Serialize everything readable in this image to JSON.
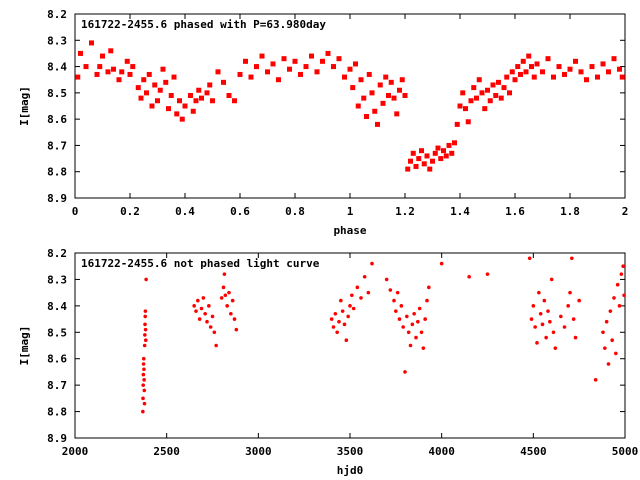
{
  "chart_data": [
    {
      "type": "scatter",
      "title": "161722-2455.6 phased with P=63.980day",
      "xlabel": "phase",
      "ylabel": "I[mag]",
      "xlim": [
        0,
        2
      ],
      "ylim": [
        8.9,
        8.2
      ],
      "y_inverted": true,
      "xticks": [
        "0",
        "0.2",
        "0.4",
        "0.6",
        "0.8",
        "1",
        "1.2",
        "1.4",
        "1.6",
        "1.8",
        "2"
      ],
      "yticks": [
        "8.2",
        "8.3",
        "8.4",
        "8.5",
        "8.6",
        "8.7",
        "8.8",
        "8.9"
      ],
      "marker_color": "#ff0000",
      "series": [
        {
          "points": [
            [
              0.01,
              8.44
            ],
            [
              0.02,
              8.35
            ],
            [
              0.04,
              8.4
            ],
            [
              0.06,
              8.31
            ],
            [
              0.08,
              8.43
            ],
            [
              0.09,
              8.4
            ],
            [
              0.1,
              8.36
            ],
            [
              0.12,
              8.42
            ],
            [
              0.13,
              8.34
            ],
            [
              0.14,
              8.41
            ],
            [
              0.16,
              8.45
            ],
            [
              0.17,
              8.42
            ],
            [
              0.19,
              8.38
            ],
            [
              0.2,
              8.43
            ],
            [
              0.21,
              8.4
            ],
            [
              0.23,
              8.48
            ],
            [
              0.24,
              8.52
            ],
            [
              0.25,
              8.45
            ],
            [
              0.26,
              8.5
            ],
            [
              0.27,
              8.43
            ],
            [
              0.28,
              8.55
            ],
            [
              0.29,
              8.47
            ],
            [
              0.3,
              8.53
            ],
            [
              0.31,
              8.49
            ],
            [
              0.32,
              8.41
            ],
            [
              0.33,
              8.46
            ],
            [
              0.34,
              8.56
            ],
            [
              0.35,
              8.51
            ],
            [
              0.36,
              8.44
            ],
            [
              0.37,
              8.58
            ],
            [
              0.38,
              8.53
            ],
            [
              0.39,
              8.6
            ],
            [
              0.4,
              8.55
            ],
            [
              0.42,
              8.51
            ],
            [
              0.43,
              8.57
            ],
            [
              0.44,
              8.53
            ],
            [
              0.45,
              8.49
            ],
            [
              0.46,
              8.52
            ],
            [
              0.48,
              8.5
            ],
            [
              0.49,
              8.47
            ],
            [
              0.5,
              8.53
            ],
            [
              0.52,
              8.42
            ],
            [
              0.54,
              8.46
            ],
            [
              0.56,
              8.51
            ],
            [
              0.58,
              8.53
            ],
            [
              0.6,
              8.43
            ],
            [
              0.62,
              8.38
            ],
            [
              0.64,
              8.44
            ],
            [
              0.66,
              8.4
            ],
            [
              0.68,
              8.36
            ],
            [
              0.7,
              8.42
            ],
            [
              0.72,
              8.39
            ],
            [
              0.74,
              8.45
            ],
            [
              0.76,
              8.37
            ],
            [
              0.78,
              8.41
            ],
            [
              0.8,
              8.38
            ],
            [
              0.82,
              8.43
            ],
            [
              0.84,
              8.4
            ],
            [
              0.86,
              8.36
            ],
            [
              0.88,
              8.42
            ],
            [
              0.9,
              8.38
            ],
            [
              0.92,
              8.35
            ],
            [
              0.94,
              8.4
            ],
            [
              0.96,
              8.37
            ],
            [
              0.98,
              8.44
            ],
            [
              1.0,
              8.41
            ],
            [
              1.01,
              8.48
            ],
            [
              1.02,
              8.39
            ],
            [
              1.03,
              8.55
            ],
            [
              1.04,
              8.45
            ],
            [
              1.05,
              8.52
            ],
            [
              1.06,
              8.59
            ],
            [
              1.07,
              8.43
            ],
            [
              1.08,
              8.5
            ],
            [
              1.09,
              8.57
            ],
            [
              1.1,
              8.62
            ],
            [
              1.11,
              8.47
            ],
            [
              1.12,
              8.54
            ],
            [
              1.13,
              8.44
            ],
            [
              1.14,
              8.51
            ],
            [
              1.15,
              8.46
            ],
            [
              1.16,
              8.52
            ],
            [
              1.17,
              8.58
            ],
            [
              1.18,
              8.49
            ],
            [
              1.19,
              8.45
            ],
            [
              1.2,
              8.51
            ],
            [
              1.21,
              8.79
            ],
            [
              1.22,
              8.76
            ],
            [
              1.23,
              8.73
            ],
            [
              1.24,
              8.78
            ],
            [
              1.25,
              8.75
            ],
            [
              1.26,
              8.72
            ],
            [
              1.27,
              8.77
            ],
            [
              1.28,
              8.74
            ],
            [
              1.29,
              8.79
            ],
            [
              1.3,
              8.76
            ],
            [
              1.31,
              8.73
            ],
            [
              1.32,
              8.71
            ],
            [
              1.33,
              8.75
            ],
            [
              1.34,
              8.72
            ],
            [
              1.35,
              8.74
            ],
            [
              1.36,
              8.7
            ],
            [
              1.37,
              8.73
            ],
            [
              1.38,
              8.69
            ],
            [
              1.39,
              8.62
            ],
            [
              1.4,
              8.55
            ],
            [
              1.41,
              8.5
            ],
            [
              1.42,
              8.56
            ],
            [
              1.43,
              8.61
            ],
            [
              1.44,
              8.53
            ],
            [
              1.45,
              8.48
            ],
            [
              1.46,
              8.52
            ],
            [
              1.47,
              8.45
            ],
            [
              1.48,
              8.5
            ],
            [
              1.49,
              8.56
            ],
            [
              1.5,
              8.49
            ],
            [
              1.51,
              8.53
            ],
            [
              1.52,
              8.47
            ],
            [
              1.53,
              8.51
            ],
            [
              1.54,
              8.46
            ],
            [
              1.55,
              8.52
            ],
            [
              1.56,
              8.48
            ],
            [
              1.57,
              8.44
            ],
            [
              1.58,
              8.5
            ],
            [
              1.59,
              8.42
            ],
            [
              1.6,
              8.45
            ],
            [
              1.61,
              8.4
            ],
            [
              1.62,
              8.43
            ],
            [
              1.63,
              8.38
            ],
            [
              1.64,
              8.42
            ],
            [
              1.65,
              8.36
            ],
            [
              1.66,
              8.4
            ],
            [
              1.67,
              8.44
            ],
            [
              1.68,
              8.39
            ],
            [
              1.7,
              8.42
            ],
            [
              1.72,
              8.37
            ],
            [
              1.74,
              8.44
            ],
            [
              1.76,
              8.4
            ],
            [
              1.78,
              8.43
            ],
            [
              1.8,
              8.41
            ],
            [
              1.82,
              8.38
            ],
            [
              1.84,
              8.42
            ],
            [
              1.86,
              8.45
            ],
            [
              1.88,
              8.4
            ],
            [
              1.9,
              8.44
            ],
            [
              1.92,
              8.39
            ],
            [
              1.94,
              8.42
            ],
            [
              1.96,
              8.37
            ],
            [
              1.98,
              8.41
            ],
            [
              1.99,
              8.44
            ]
          ]
        }
      ]
    },
    {
      "type": "scatter",
      "title": "161722-2455.6 not phased light curve",
      "xlabel": "hjd0",
      "ylabel": "I[mag]",
      "xlim": [
        2000,
        5000
      ],
      "ylim": [
        8.9,
        8.2
      ],
      "y_inverted": true,
      "xticks": [
        "2000",
        "2500",
        "3000",
        "3500",
        "4000",
        "4500",
        "5000"
      ],
      "yticks": [
        "8.2",
        "8.3",
        "8.4",
        "8.5",
        "8.6",
        "8.7",
        "8.8",
        "8.9"
      ],
      "marker_color": "#ff0000",
      "series": [
        {
          "points": [
            [
              2370,
              8.8
            ],
            [
              2371,
              8.75
            ],
            [
              2372,
              8.7
            ],
            [
              2373,
              8.66
            ],
            [
              2374,
              8.62
            ],
            [
              2375,
              8.6
            ],
            [
              2376,
              8.64
            ],
            [
              2377,
              8.68
            ],
            [
              2378,
              8.72
            ],
            [
              2379,
              8.77
            ],
            [
              2380,
              8.55
            ],
            [
              2381,
              8.51
            ],
            [
              2382,
              8.47
            ],
            [
              2383,
              8.44
            ],
            [
              2384,
              8.42
            ],
            [
              2385,
              8.49
            ],
            [
              2386,
              8.53
            ],
            [
              2388,
              8.3
            ],
            [
              2650,
              8.4
            ],
            [
              2660,
              8.42
            ],
            [
              2670,
              8.38
            ],
            [
              2680,
              8.45
            ],
            [
              2690,
              8.41
            ],
            [
              2700,
              8.37
            ],
            [
              2710,
              8.43
            ],
            [
              2720,
              8.46
            ],
            [
              2730,
              8.4
            ],
            [
              2740,
              8.48
            ],
            [
              2750,
              8.44
            ],
            [
              2760,
              8.5
            ],
            [
              2770,
              8.55
            ],
            [
              2800,
              8.37
            ],
            [
              2810,
              8.33
            ],
            [
              2815,
              8.28
            ],
            [
              2820,
              8.36
            ],
            [
              2830,
              8.4
            ],
            [
              2840,
              8.35
            ],
            [
              2850,
              8.43
            ],
            [
              2860,
              8.38
            ],
            [
              2870,
              8.45
            ],
            [
              2880,
              8.49
            ],
            [
              3400,
              8.45
            ],
            [
              3410,
              8.48
            ],
            [
              3420,
              8.43
            ],
            [
              3430,
              8.5
            ],
            [
              3440,
              8.46
            ],
            [
              3450,
              8.38
            ],
            [
              3460,
              8.42
            ],
            [
              3470,
              8.47
            ],
            [
              3480,
              8.53
            ],
            [
              3490,
              8.44
            ],
            [
              3500,
              8.4
            ],
            [
              3510,
              8.36
            ],
            [
              3520,
              8.41
            ],
            [
              3540,
              8.33
            ],
            [
              3560,
              8.37
            ],
            [
              3580,
              8.29
            ],
            [
              3600,
              8.35
            ],
            [
              3620,
              8.24
            ],
            [
              3700,
              8.3
            ],
            [
              3720,
              8.34
            ],
            [
              3740,
              8.38
            ],
            [
              3750,
              8.42
            ],
            [
              3760,
              8.35
            ],
            [
              3770,
              8.45
            ],
            [
              3780,
              8.4
            ],
            [
              3790,
              8.48
            ],
            [
              3800,
              8.65
            ],
            [
              3810,
              8.44
            ],
            [
              3820,
              8.5
            ],
            [
              3830,
              8.55
            ],
            [
              3840,
              8.47
            ],
            [
              3850,
              8.43
            ],
            [
              3860,
              8.52
            ],
            [
              3870,
              8.46
            ],
            [
              3880,
              8.41
            ],
            [
              3890,
              8.5
            ],
            [
              3900,
              8.56
            ],
            [
              3910,
              8.45
            ],
            [
              3920,
              8.38
            ],
            [
              3930,
              8.33
            ],
            [
              4000,
              8.24
            ],
            [
              4150,
              8.29
            ],
            [
              4250,
              8.28
            ],
            [
              4480,
              8.22
            ],
            [
              4490,
              8.45
            ],
            [
              4500,
              8.4
            ],
            [
              4510,
              8.48
            ],
            [
              4520,
              8.54
            ],
            [
              4530,
              8.35
            ],
            [
              4540,
              8.43
            ],
            [
              4550,
              8.47
            ],
            [
              4560,
              8.38
            ],
            [
              4570,
              8.52
            ],
            [
              4580,
              8.42
            ],
            [
              4590,
              8.46
            ],
            [
              4600,
              8.3
            ],
            [
              4610,
              8.5
            ],
            [
              4620,
              8.56
            ],
            [
              4650,
              8.44
            ],
            [
              4670,
              8.48
            ],
            [
              4690,
              8.4
            ],
            [
              4700,
              8.35
            ],
            [
              4710,
              8.22
            ],
            [
              4720,
              8.45
            ],
            [
              4730,
              8.52
            ],
            [
              4750,
              8.38
            ],
            [
              4840,
              8.68
            ],
            [
              4880,
              8.5
            ],
            [
              4890,
              8.56
            ],
            [
              4900,
              8.46
            ],
            [
              4910,
              8.62
            ],
            [
              4920,
              8.42
            ],
            [
              4930,
              8.53
            ],
            [
              4940,
              8.37
            ],
            [
              4950,
              8.58
            ],
            [
              4960,
              8.32
            ],
            [
              4970,
              8.4
            ],
            [
              4980,
              8.28
            ],
            [
              4990,
              8.25
            ],
            [
              4995,
              8.36
            ]
          ]
        }
      ]
    }
  ]
}
